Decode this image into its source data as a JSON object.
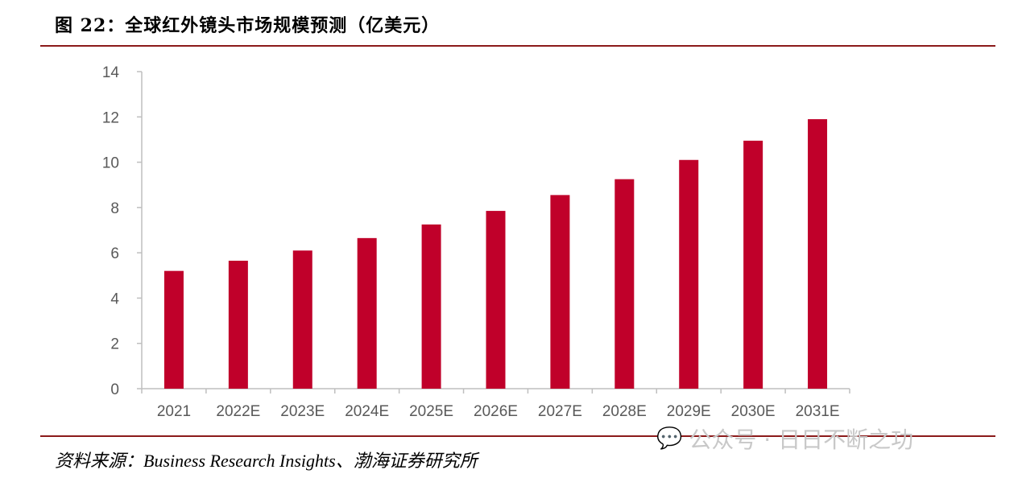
{
  "title": "图 22：全球红外镜头市场规模预测（亿美元）",
  "source": "资料来源：Business Research Insights、渤海证券研究所",
  "watermark": "公众号 · 日日不断之功",
  "colors": {
    "bar": "#c0002a",
    "rule": "#8b1a1a"
  },
  "chart_data": {
    "type": "bar",
    "title": "全球红外镜头市场规模预测（亿美元）",
    "xlabel": "",
    "ylabel": "",
    "categories": [
      "2021",
      "2022E",
      "2023E",
      "2024E",
      "2025E",
      "2026E",
      "2027E",
      "2028E",
      "2029E",
      "2030E",
      "2031E"
    ],
    "values": [
      5.2,
      5.65,
      6.1,
      6.65,
      7.25,
      7.85,
      8.55,
      9.25,
      10.1,
      10.95,
      11.9
    ],
    "ylim": [
      0,
      14
    ],
    "yticks": [
      0,
      2,
      4,
      6,
      8,
      10,
      12,
      14
    ],
    "grid": false,
    "legend": "none"
  }
}
